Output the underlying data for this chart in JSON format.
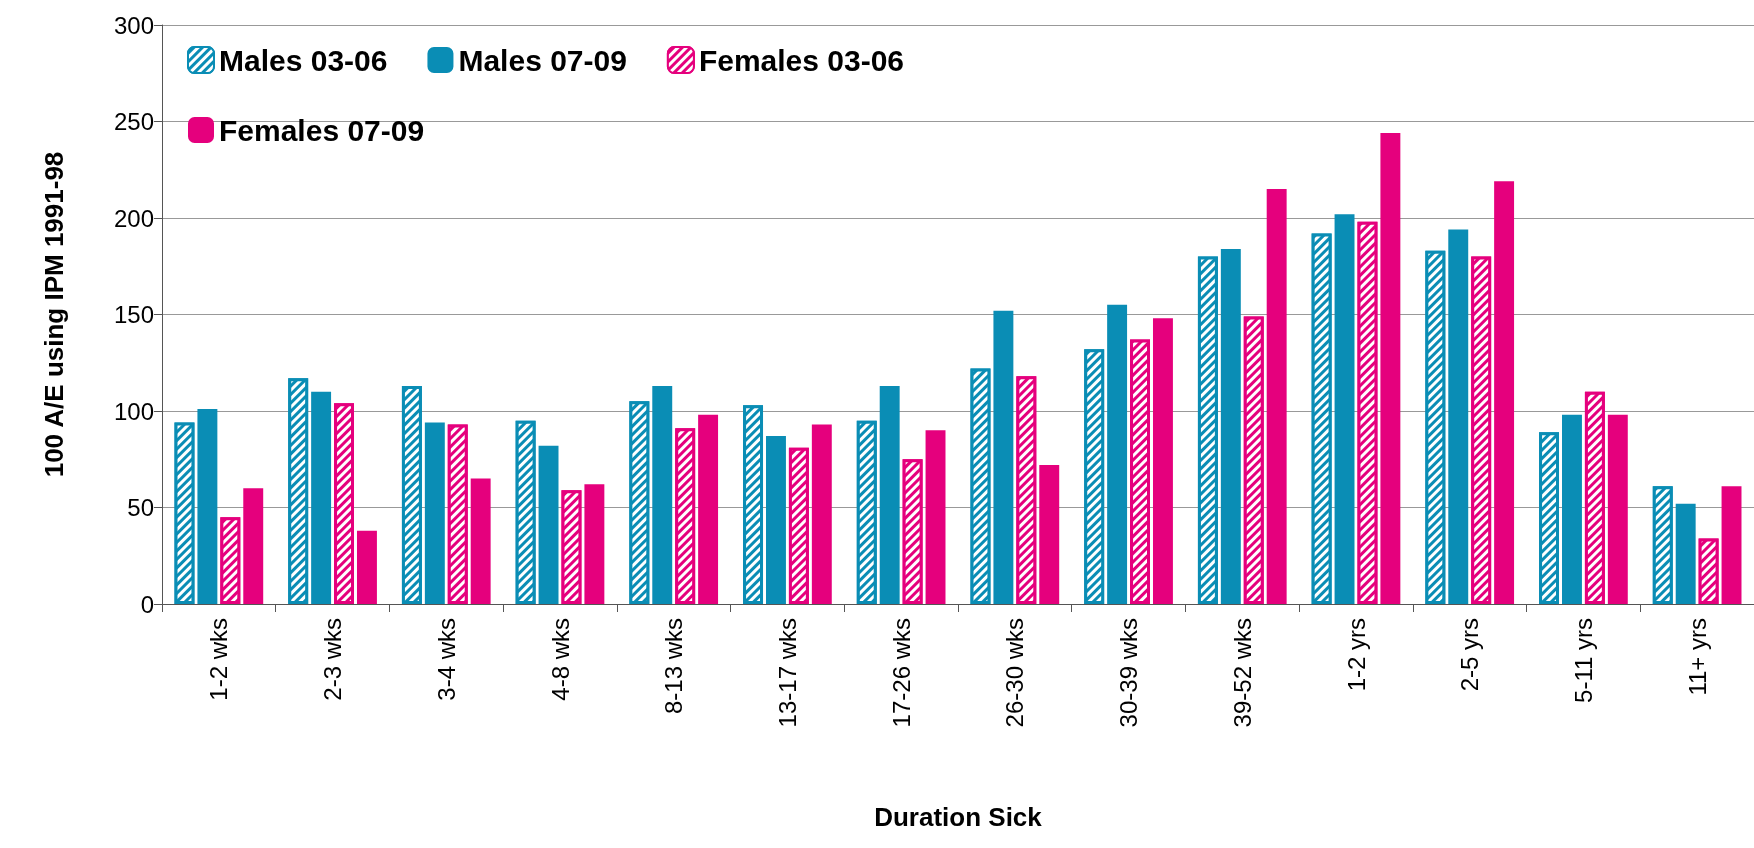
{
  "chart_data": {
    "type": "bar",
    "xlabel": "Duration Sick",
    "ylabel": "100 A/E using IPM 1991-98",
    "categories": [
      "1-2 wks",
      "2-3 wks",
      "3-4 wks",
      "4-8 wks",
      "8-13 wks",
      "13-17 wks",
      "17-26 wks",
      "26-30 wks",
      "30-39 wks",
      "39-52 wks",
      "1-2 yrs",
      "2-5 yrs",
      "5-11 yrs",
      "11+ yrs"
    ],
    "series": [
      {
        "name": "Males 03-06",
        "color": "#0a8db5",
        "values": [
          94,
          117,
          113,
          95,
          105,
          103,
          95,
          122,
          132,
          180,
          192,
          183,
          89,
          61
        ]
      },
      {
        "name": "Males 07-09",
        "color": "#0a8db5",
        "values": [
          101,
          110,
          94,
          82,
          113,
          87,
          113,
          152,
          155,
          184,
          202,
          194,
          98,
          52
        ]
      },
      {
        "name": "Females 03-06",
        "color": "#e5007d",
        "values": [
          45,
          104,
          93,
          59,
          91,
          81,
          75,
          118,
          137,
          149,
          198,
          180,
          110,
          34
        ]
      },
      {
        "name": "Females 07-09",
        "color": "#e5007d",
        "values": [
          60,
          38,
          65,
          62,
          98,
          93,
          90,
          72,
          148,
          215,
          244,
          219,
          98,
          61
        ]
      }
    ],
    "ylim": [
      0,
      300
    ],
    "yticks": [
      0,
      50,
      100,
      150,
      200,
      250,
      300
    ],
    "grid": "y",
    "legend": "top left"
  }
}
